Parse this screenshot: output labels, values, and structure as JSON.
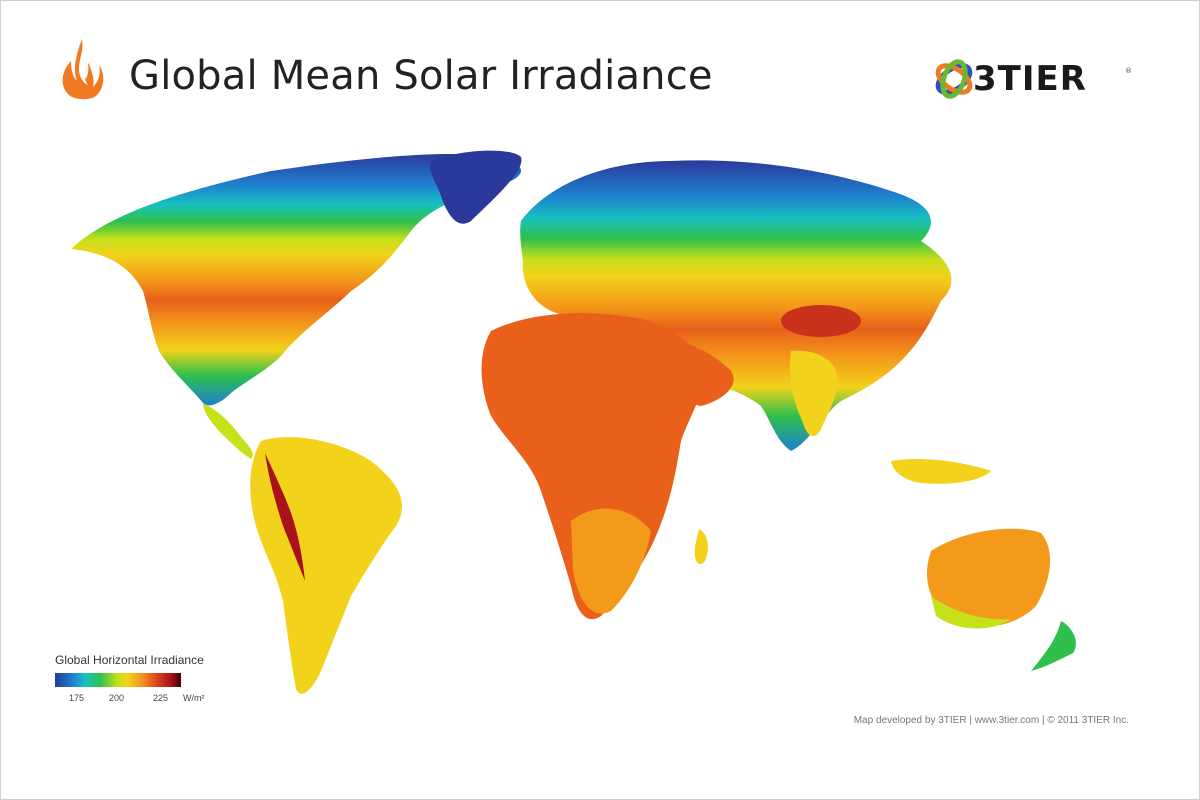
{
  "header": {
    "title": "Global Mean Solar Irradiance",
    "brand": "3TIER",
    "brand_mark": "®"
  },
  "legend": {
    "title": "Global Horizontal Irradiance",
    "ticks": [
      "175",
      "200",
      "225"
    ],
    "unit": "W/m²"
  },
  "credit": {
    "text": "Map developed by 3TIER  |  www.3tier.com  |  © 2011 3TIER Inc."
  },
  "icons": [
    "sun-flame-logo-icon",
    "3tier-logo-icon"
  ],
  "colors": {
    "low": "#2b3a9a",
    "mid_low": "#2ec04a",
    "mid": "#f2d21a",
    "high": "#e04a18",
    "max": "#3a0606",
    "accent": "#f07a22"
  }
}
